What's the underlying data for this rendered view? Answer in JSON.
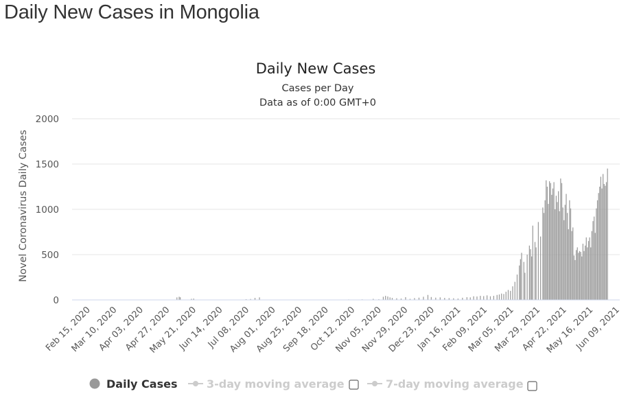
{
  "page": {
    "title": "Daily New Cases in Mongolia"
  },
  "chart_data": {
    "type": "bar",
    "title": "Daily New Cases",
    "subtitle_lines": [
      "Cases per Day",
      "Data as of 0:00 GMT+0"
    ],
    "ylabel": "Novel Coronavirus Daily Cases",
    "xlabel": "",
    "ylim": [
      0,
      2000
    ],
    "yticks": [
      0,
      500,
      1000,
      1500,
      2000
    ],
    "grid": true,
    "x_start": "2020-02-15",
    "x_end": "2021-06-20",
    "xtick_labels": [
      "Feb 15, 2020",
      "Mar 10, 2020",
      "Apr 03, 2020",
      "Apr 27, 2020",
      "May 21, 2020",
      "Jun 14, 2020",
      "Jul 08, 2020",
      "Aug 01, 2020",
      "Aug 25, 2020",
      "Sep 18, 2020",
      "Oct 12, 2020",
      "Nov 05, 2020",
      "Nov 29, 2020",
      "Dec 23, 2020",
      "Jan 16, 2021",
      "Feb 09, 2021",
      "Mar 05, 2021",
      "Mar 29, 2021",
      "Apr 22, 2021",
      "May 16, 2021",
      "Jun 09, 2021"
    ],
    "series": [
      {
        "name": "Daily Cases",
        "color": "#999999",
        "points": [
          [
            "2020-05-19",
            28
          ],
          [
            "2020-05-21",
            35
          ],
          [
            "2020-05-22",
            29
          ],
          [
            "2020-06-01",
            12
          ],
          [
            "2020-06-03",
            15
          ],
          [
            "2020-07-20",
            8
          ],
          [
            "2020-07-24",
            10
          ],
          [
            "2020-07-28",
            22
          ],
          [
            "2020-08-01",
            28
          ],
          [
            "2020-10-20",
            5
          ],
          [
            "2020-11-01",
            6
          ],
          [
            "2020-11-11",
            12
          ],
          [
            "2020-11-16",
            8
          ],
          [
            "2020-11-20",
            35
          ],
          [
            "2020-11-22",
            45
          ],
          [
            "2020-11-24",
            38
          ],
          [
            "2020-11-26",
            28
          ],
          [
            "2020-11-28",
            22
          ],
          [
            "2020-12-02",
            18
          ],
          [
            "2020-12-06",
            15
          ],
          [
            "2020-12-10",
            30
          ],
          [
            "2020-12-14",
            12
          ],
          [
            "2020-12-18",
            20
          ],
          [
            "2020-12-22",
            25
          ],
          [
            "2020-12-26",
            35
          ],
          [
            "2020-12-30",
            55
          ],
          [
            "2021-01-02",
            32
          ],
          [
            "2021-01-06",
            25
          ],
          [
            "2021-01-10",
            28
          ],
          [
            "2021-01-14",
            22
          ],
          [
            "2021-01-18",
            20
          ],
          [
            "2021-01-22",
            18
          ],
          [
            "2021-01-26",
            15
          ],
          [
            "2021-01-30",
            24
          ],
          [
            "2021-02-03",
            30
          ],
          [
            "2021-02-06",
            28
          ],
          [
            "2021-02-09",
            40
          ],
          [
            "2021-02-12",
            38
          ],
          [
            "2021-02-15",
            45
          ],
          [
            "2021-02-18",
            42
          ],
          [
            "2021-02-21",
            50
          ],
          [
            "2021-02-24",
            40
          ],
          [
            "2021-02-27",
            45
          ],
          [
            "2021-03-02",
            55
          ],
          [
            "2021-03-04",
            60
          ],
          [
            "2021-03-06",
            70
          ],
          [
            "2021-03-08",
            65
          ],
          [
            "2021-03-10",
            90
          ],
          [
            "2021-03-12",
            110
          ],
          [
            "2021-03-14",
            100
          ],
          [
            "2021-03-16",
            150
          ],
          [
            "2021-03-18",
            200
          ],
          [
            "2021-03-20",
            280
          ],
          [
            "2021-03-22",
            380
          ],
          [
            "2021-03-23",
            450
          ],
          [
            "2021-03-24",
            520
          ],
          [
            "2021-03-26",
            420
          ],
          [
            "2021-03-27",
            300
          ],
          [
            "2021-03-29",
            500
          ],
          [
            "2021-03-31",
            600
          ],
          [
            "2021-04-01",
            560
          ],
          [
            "2021-04-02",
            480
          ],
          [
            "2021-04-03",
            820
          ],
          [
            "2021-04-05",
            640
          ],
          [
            "2021-04-06",
            580
          ],
          [
            "2021-04-08",
            860
          ],
          [
            "2021-04-10",
            700
          ],
          [
            "2021-04-12",
            1020
          ],
          [
            "2021-04-13",
            960
          ],
          [
            "2021-04-14",
            1100
          ],
          [
            "2021-04-15",
            1320
          ],
          [
            "2021-04-16",
            1250
          ],
          [
            "2021-04-17",
            1060
          ],
          [
            "2021-04-18",
            1310
          ],
          [
            "2021-04-19",
            1290
          ],
          [
            "2021-04-20",
            1160
          ],
          [
            "2021-04-21",
            1230
          ],
          [
            "2021-04-22",
            1300
          ],
          [
            "2021-04-23",
            1000
          ],
          [
            "2021-04-24",
            1150
          ],
          [
            "2021-04-25",
            1080
          ],
          [
            "2021-04-26",
            1200
          ],
          [
            "2021-04-27",
            980
          ],
          [
            "2021-04-28",
            1340
          ],
          [
            "2021-04-29",
            1290
          ],
          [
            "2021-04-30",
            1020
          ],
          [
            "2021-05-01",
            880
          ],
          [
            "2021-05-02",
            1050
          ],
          [
            "2021-05-03",
            1170
          ],
          [
            "2021-05-04",
            960
          ],
          [
            "2021-05-05",
            780
          ],
          [
            "2021-05-06",
            1100
          ],
          [
            "2021-05-07",
            1010
          ],
          [
            "2021-05-08",
            760
          ],
          [
            "2021-05-09",
            800
          ],
          [
            "2021-05-10",
            490
          ],
          [
            "2021-05-11",
            440
          ],
          [
            "2021-05-12",
            550
          ],
          [
            "2021-05-13",
            580
          ],
          [
            "2021-05-14",
            520
          ],
          [
            "2021-05-15",
            540
          ],
          [
            "2021-05-16",
            530
          ],
          [
            "2021-05-17",
            480
          ],
          [
            "2021-05-18",
            620
          ],
          [
            "2021-05-19",
            540
          ],
          [
            "2021-05-20",
            600
          ],
          [
            "2021-05-21",
            690
          ],
          [
            "2021-05-22",
            580
          ],
          [
            "2021-05-23",
            650
          ],
          [
            "2021-05-24",
            690
          ],
          [
            "2021-05-25",
            580
          ],
          [
            "2021-05-26",
            760
          ],
          [
            "2021-05-27",
            870
          ],
          [
            "2021-05-28",
            920
          ],
          [
            "2021-05-29",
            740
          ],
          [
            "2021-05-30",
            1010
          ],
          [
            "2021-05-31",
            1100
          ],
          [
            "2021-06-01",
            1180
          ],
          [
            "2021-06-02",
            1250
          ],
          [
            "2021-06-03",
            1360
          ],
          [
            "2021-06-04",
            1230
          ],
          [
            "2021-06-05",
            1390
          ],
          [
            "2021-06-06",
            1280
          ],
          [
            "2021-06-07",
            1260
          ],
          [
            "2021-06-08",
            1300
          ],
          [
            "2021-06-09",
            1450
          ]
        ]
      },
      {
        "name": "3-day moving average",
        "visible": false
      },
      {
        "name": "7-day moving average",
        "visible": false
      }
    ],
    "legend": {
      "position": "bottom",
      "items": [
        "Daily Cases",
        "3-day moving average",
        "7-day moving average"
      ]
    }
  }
}
